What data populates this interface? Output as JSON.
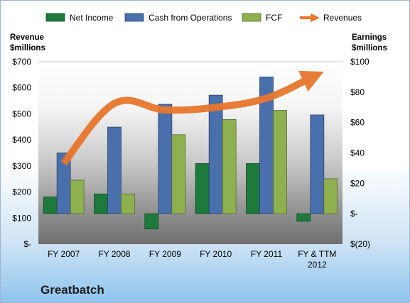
{
  "chart_data": {
    "type": "bar",
    "title": "Greatbatch",
    "left_axis_title": [
      "Revenue",
      "$millions"
    ],
    "right_axis_title": [
      "Earnings",
      "$millions"
    ],
    "categories": [
      [
        "FY 2007"
      ],
      [
        "FY 2008"
      ],
      [
        "FY 2009"
      ],
      [
        "FY 2010"
      ],
      [
        "FY 2011"
      ],
      [
        "FY & TTM",
        "2012"
      ]
    ],
    "left_ticks": [
      "$-",
      "$100",
      "$200",
      "$300",
      "$400",
      "$500",
      "$600",
      "$700"
    ],
    "right_ticks": [
      "$(20)",
      "$-",
      "$20",
      "$40",
      "$60",
      "$80",
      "$100"
    ],
    "ylim_left": [
      0,
      700
    ],
    "ylim_right": [
      -20,
      100
    ],
    "grid": false,
    "legend_position": "top",
    "series": [
      {
        "name": "Net Income",
        "axis": "right",
        "color": "#1e7a3c",
        "values": [
          11,
          13,
          -10,
          33,
          33,
          -5
        ]
      },
      {
        "name": "Cash from Operations",
        "axis": "right",
        "color": "#4a6fad",
        "values": [
          40,
          57,
          72,
          78,
          90,
          65
        ]
      },
      {
        "name": "FCF",
        "axis": "right",
        "color": "#8fb04f",
        "values": [
          22,
          13,
          52,
          62,
          68,
          23
        ]
      },
      {
        "name": "Revenues",
        "axis": "left",
        "type": "line",
        "color": "#e8772e",
        "values": [
          310,
          540,
          515,
          525,
          560,
          640
        ]
      }
    ]
  }
}
